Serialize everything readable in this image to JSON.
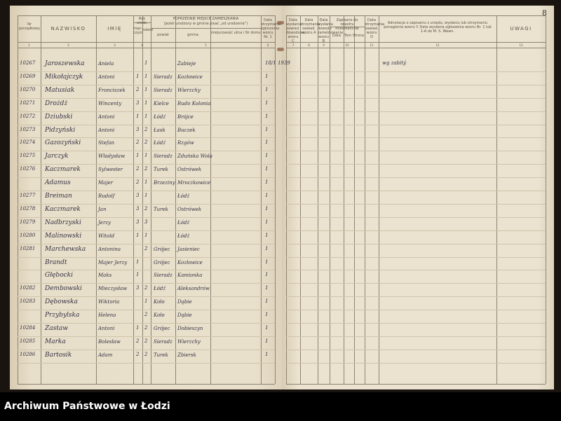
{
  "page_number": "8",
  "footer": "Archiwum Państwowe w Łodzi",
  "left_headers": {
    "nr": "Nr porządkowy",
    "nazwisko": "NAZWISKO",
    "imie": "IMIĘ",
    "rok_urodz": "Rok urodz.",
    "mezczyzn": "męż-czyzn",
    "kobiet": "kobiet",
    "previous_residence": "POPRZEDNIE MIEJSCE ZAMIESZKANIA",
    "previous_residence_note": "(jeżeli urodzony w gminie pisać „od urodzenia”)",
    "powiat": "powiat",
    "gmina": "gmina",
    "miejscowosc": "miejscowość ulica i Nr domu",
    "col6": "Data otrzymania zgłoszenia wzoru Nr. 1",
    "nums": [
      "1",
      "2",
      "3",
      "4",
      "5",
      "6"
    ]
  },
  "right_headers": {
    "col7": "Data wysłania zawiad. dowodowe wzoru C",
    "col8": "Data otrzymania zawiad. wzoru A",
    "col9": "Data wysłania dowodu zameldowania wzoru B",
    "col10": "Zapisano do rejestru mieszkańców",
    "col10a": "Data",
    "col10b": "Tom Strona",
    "col11": "Data otrzymania zawiad. wzoru D",
    "col12": "Adnotacja o zapisaniu z urzędu, wysłaniu lub otrzymaniu ponaglenia wzoru Y. Data wysłania zgłoszenia wzoru Nr. 1 lub 1-A do M. S. Wewn.",
    "uwagi": "UWAGI",
    "nums": [
      "7",
      "8",
      "9",
      "10",
      "11",
      "12",
      "13"
    ]
  },
  "rows": [
    {
      "nr": "10267",
      "nazwisko": "Jaroszewska",
      "imie": "Aniela",
      "m": "",
      "k": "1",
      "powiat": "",
      "gmina": "Zabieje",
      "c6": "18/1 1939",
      "note": "wg zabitý"
    },
    {
      "nr": "10269",
      "nazwisko": "Mikołajczyk",
      "imie": "Antoni",
      "m": "1",
      "k": "1",
      "powiat": "Sieradz",
      "gmina": "Kozłowice",
      "c6": "1",
      "note": ""
    },
    {
      "nr": "10270",
      "nazwisko": "Matusiak",
      "imie": "Franciszek",
      "m": "2",
      "k": "1",
      "powiat": "Sieradz",
      "gmina": "Wierzchy",
      "c6": "1",
      "note": ""
    },
    {
      "nr": "10271",
      "nazwisko": "Drożdż",
      "imie": "Wincenty",
      "m": "3",
      "k": "1",
      "powiat": "Kielce",
      "gmina": "Rudo Kolonia",
      "c6": "1",
      "note": ""
    },
    {
      "nr": "10272",
      "nazwisko": "Dziubski",
      "imie": "Antoni",
      "m": "1",
      "k": "1",
      "powiat": "Łódź",
      "gmina": "Brójce",
      "c6": "1",
      "note": ""
    },
    {
      "nr": "10273",
      "nazwisko": "Pidzyński",
      "imie": "Antoni",
      "m": "3",
      "k": "2",
      "powiat": "Łask",
      "gmina": "Buczek",
      "c6": "1",
      "note": ""
    },
    {
      "nr": "10274",
      "nazwisko": "Gazozyński",
      "imie": "Stefan",
      "m": "2",
      "k": "2",
      "powiat": "Łódź",
      "gmina": "Rzgów",
      "c6": "1",
      "note": ""
    },
    {
      "nr": "10275",
      "nazwisko": "Jarczyk",
      "imie": "Władysław",
      "m": "1",
      "k": "1",
      "powiat": "Sieradz",
      "gmina": "Zduńska Wola",
      "c6": "1",
      "note": ""
    },
    {
      "nr": "10276",
      "nazwisko": "Kaczmarek",
      "imie": "Sylwester",
      "m": "2",
      "k": "2",
      "powiat": "Turek",
      "gmina": "Ostrówek",
      "c6": "1",
      "note": ""
    },
    {
      "nr": "",
      "nazwisko": "Adamus",
      "imie": "Majer",
      "m": "2",
      "k": "1",
      "powiat": "Brzeziny",
      "gmina": "Mroczkowice",
      "c6": "1",
      "note": ""
    },
    {
      "nr": "10277",
      "nazwisko": "Breiman",
      "imie": "Rudolf",
      "m": "3",
      "k": "1",
      "powiat": "",
      "gmina": "Łódź",
      "c6": "1",
      "note": ""
    },
    {
      "nr": "10278",
      "nazwisko": "Kaczmarek",
      "imie": "Jan",
      "m": "3",
      "k": "2",
      "powiat": "Turek",
      "gmina": "Ostrówek",
      "c6": "1",
      "note": ""
    },
    {
      "nr": "10279",
      "nazwisko": "Nadbrzyski",
      "imie": "Jerzy",
      "m": "3",
      "k": "3",
      "powiat": "",
      "gmina": "Łódź",
      "c6": "1",
      "note": ""
    },
    {
      "nr": "10280",
      "nazwisko": "Malinowski",
      "imie": "Witold",
      "m": "1",
      "k": "1",
      "powiat": "",
      "gmina": "Łódź",
      "c6": "1",
      "note": ""
    },
    {
      "nr": "10281",
      "nazwisko": "Marchewska",
      "imie": "Antonina",
      "m": "",
      "k": "2",
      "powiat": "Grójec",
      "gmina": "Jasieniec",
      "c6": "1",
      "note": ""
    },
    {
      "nr": "",
      "nazwisko": "Brandt",
      "imie": "Majer Jerzy",
      "m": "1",
      "k": "",
      "powiat": "Grójec",
      "gmina": "Kozłowice",
      "c6": "1",
      "note": ""
    },
    {
      "nr": "",
      "nazwisko": "Głębocki",
      "imie": "Maks",
      "m": "1",
      "k": "",
      "powiat": "Sieradz",
      "gmina": "Kamionka",
      "c6": "1",
      "note": ""
    },
    {
      "nr": "10282",
      "nazwisko": "Dembowski",
      "imie": "Mieczysław",
      "m": "3",
      "k": "2",
      "powiat": "Łódź",
      "gmina": "Aleksandrów",
      "c6": "1",
      "note": ""
    },
    {
      "nr": "10283",
      "nazwisko": "Dębowska",
      "imie": "Wiktoria",
      "m": "",
      "k": "1",
      "powiat": "Koło",
      "gmina": "Dąbie",
      "c6": "1",
      "note": ""
    },
    {
      "nr": "",
      "nazwisko": "Przybylska",
      "imie": "Helena",
      "m": "",
      "k": "2",
      "powiat": "Koło",
      "gmina": "Dąbie",
      "c6": "1",
      "note": ""
    },
    {
      "nr": "10284",
      "nazwisko": "Zastaw",
      "imie": "Antoni",
      "m": "1",
      "k": "2",
      "powiat": "Grójec",
      "gmina": "Dobieszyn",
      "c6": "1",
      "note": ""
    },
    {
      "nr": "10285",
      "nazwisko": "Marka",
      "imie": "Bolesław",
      "m": "2",
      "k": "2",
      "powiat": "Sieradz",
      "gmina": "Wierzchy",
      "c6": "1",
      "note": ""
    },
    {
      "nr": "10286",
      "nazwisko": "Bartosik",
      "imie": "Adam",
      "m": "2",
      "k": "2",
      "powiat": "Turek",
      "gmina": "Zbiersk",
      "c6": "1",
      "note": ""
    }
  ]
}
